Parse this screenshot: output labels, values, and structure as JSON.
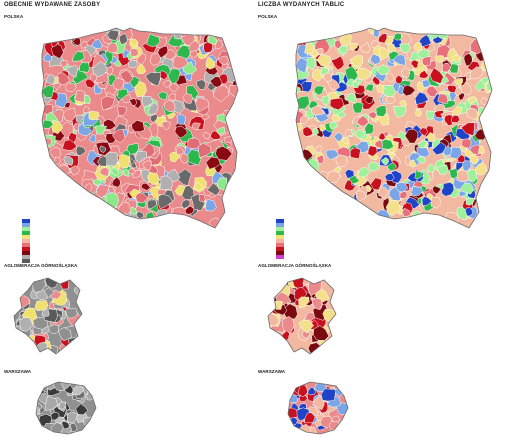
{
  "left": {
    "title": "OBECNIE WYDAWANE ZASOBY",
    "poland_label": "POLSKA",
    "silesia_label": "AGLOMERACJA GÓRNOŚLĄSKA",
    "warsaw_label": "WARSZAWA",
    "legend_colors": [
      "#1f44c8",
      "#7aa6e8",
      "#9ef09a",
      "#2ab84a",
      "#f2e27a",
      "#f4b6a8",
      "#e8707a",
      "#c8101e",
      "#7a0a10",
      "#b0b0b0",
      "#5a5a5a"
    ]
  },
  "right": {
    "title": "LICZBA WYDANYCH TABLIC",
    "poland_label": "POLSKA",
    "silesia_label": "AGLOMERACJA GÓRNOŚLĄSKA",
    "warsaw_label": "WARSZAWA",
    "legend_colors": [
      "#1f44c8",
      "#7aa6e8",
      "#9ef09a",
      "#2ab84a",
      "#f2e27a",
      "#f4b6a8",
      "#e8707a",
      "#c8101e",
      "#7a0a10",
      "#d040d0"
    ]
  },
  "palette": {
    "outline": "#6a6a6a",
    "left_base": "#ea8a8a",
    "right_base": "#f2b9a0",
    "left_mix": [
      "#ea8a8a",
      "#ea8a8a",
      "#ea8a8a",
      "#e06c74",
      "#c8101e",
      "#8a0a14",
      "#f0e070",
      "#8de88a",
      "#2cb84c",
      "#b0b0b0",
      "#6a6a6a",
      "#7aa6e8"
    ],
    "right_mix": [
      "#f2b9a0",
      "#f2b9a0",
      "#f4e08a",
      "#f4e08a",
      "#9ef09a",
      "#9ef09a",
      "#2cb84c",
      "#e8707a",
      "#c8101e",
      "#7aa6e8",
      "#1f44c8",
      "#7a0a10"
    ],
    "left_silesia_mix": [
      "#909090",
      "#ea8a8a",
      "#5a5a5a",
      "#f0e070",
      "#c8101e",
      "#b0b0b0"
    ],
    "right_silesia_mix": [
      "#f2b9a0",
      "#ea8a8a",
      "#c8101e",
      "#f4e08a",
      "#7a0a10"
    ],
    "left_warsaw_mix": [
      "#909090",
      "#a8a8a8",
      "#707070",
      "#3a3a3a",
      "#c0c0c0"
    ],
    "right_warsaw_mix": [
      "#ea8a8a",
      "#c8101e",
      "#f2b9a0",
      "#7aa6e8",
      "#1f44c8"
    ]
  }
}
